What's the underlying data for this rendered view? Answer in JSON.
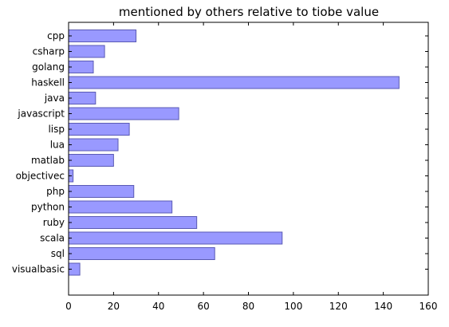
{
  "chart_data": {
    "type": "bar",
    "orientation": "horizontal",
    "title": "mentioned by others relative to tiobe value",
    "xlabel": "",
    "ylabel": "",
    "categories": [
      "cpp",
      "csharp",
      "golang",
      "haskell",
      "java",
      "javascript",
      "lisp",
      "lua",
      "matlab",
      "objectivec",
      "php",
      "python",
      "ruby",
      "scala",
      "sql",
      "visualbasic"
    ],
    "values": [
      30,
      16,
      11,
      147,
      12,
      49,
      27,
      22,
      20,
      2,
      29,
      46,
      57,
      95,
      65,
      5
    ],
    "xlim": [
      0,
      160
    ],
    "xticks": [
      0,
      20,
      40,
      60,
      80,
      100,
      120,
      140,
      160
    ],
    "grid": false,
    "bar_color": "#9999ff",
    "bar_edge_color": "#5a5ab4"
  }
}
